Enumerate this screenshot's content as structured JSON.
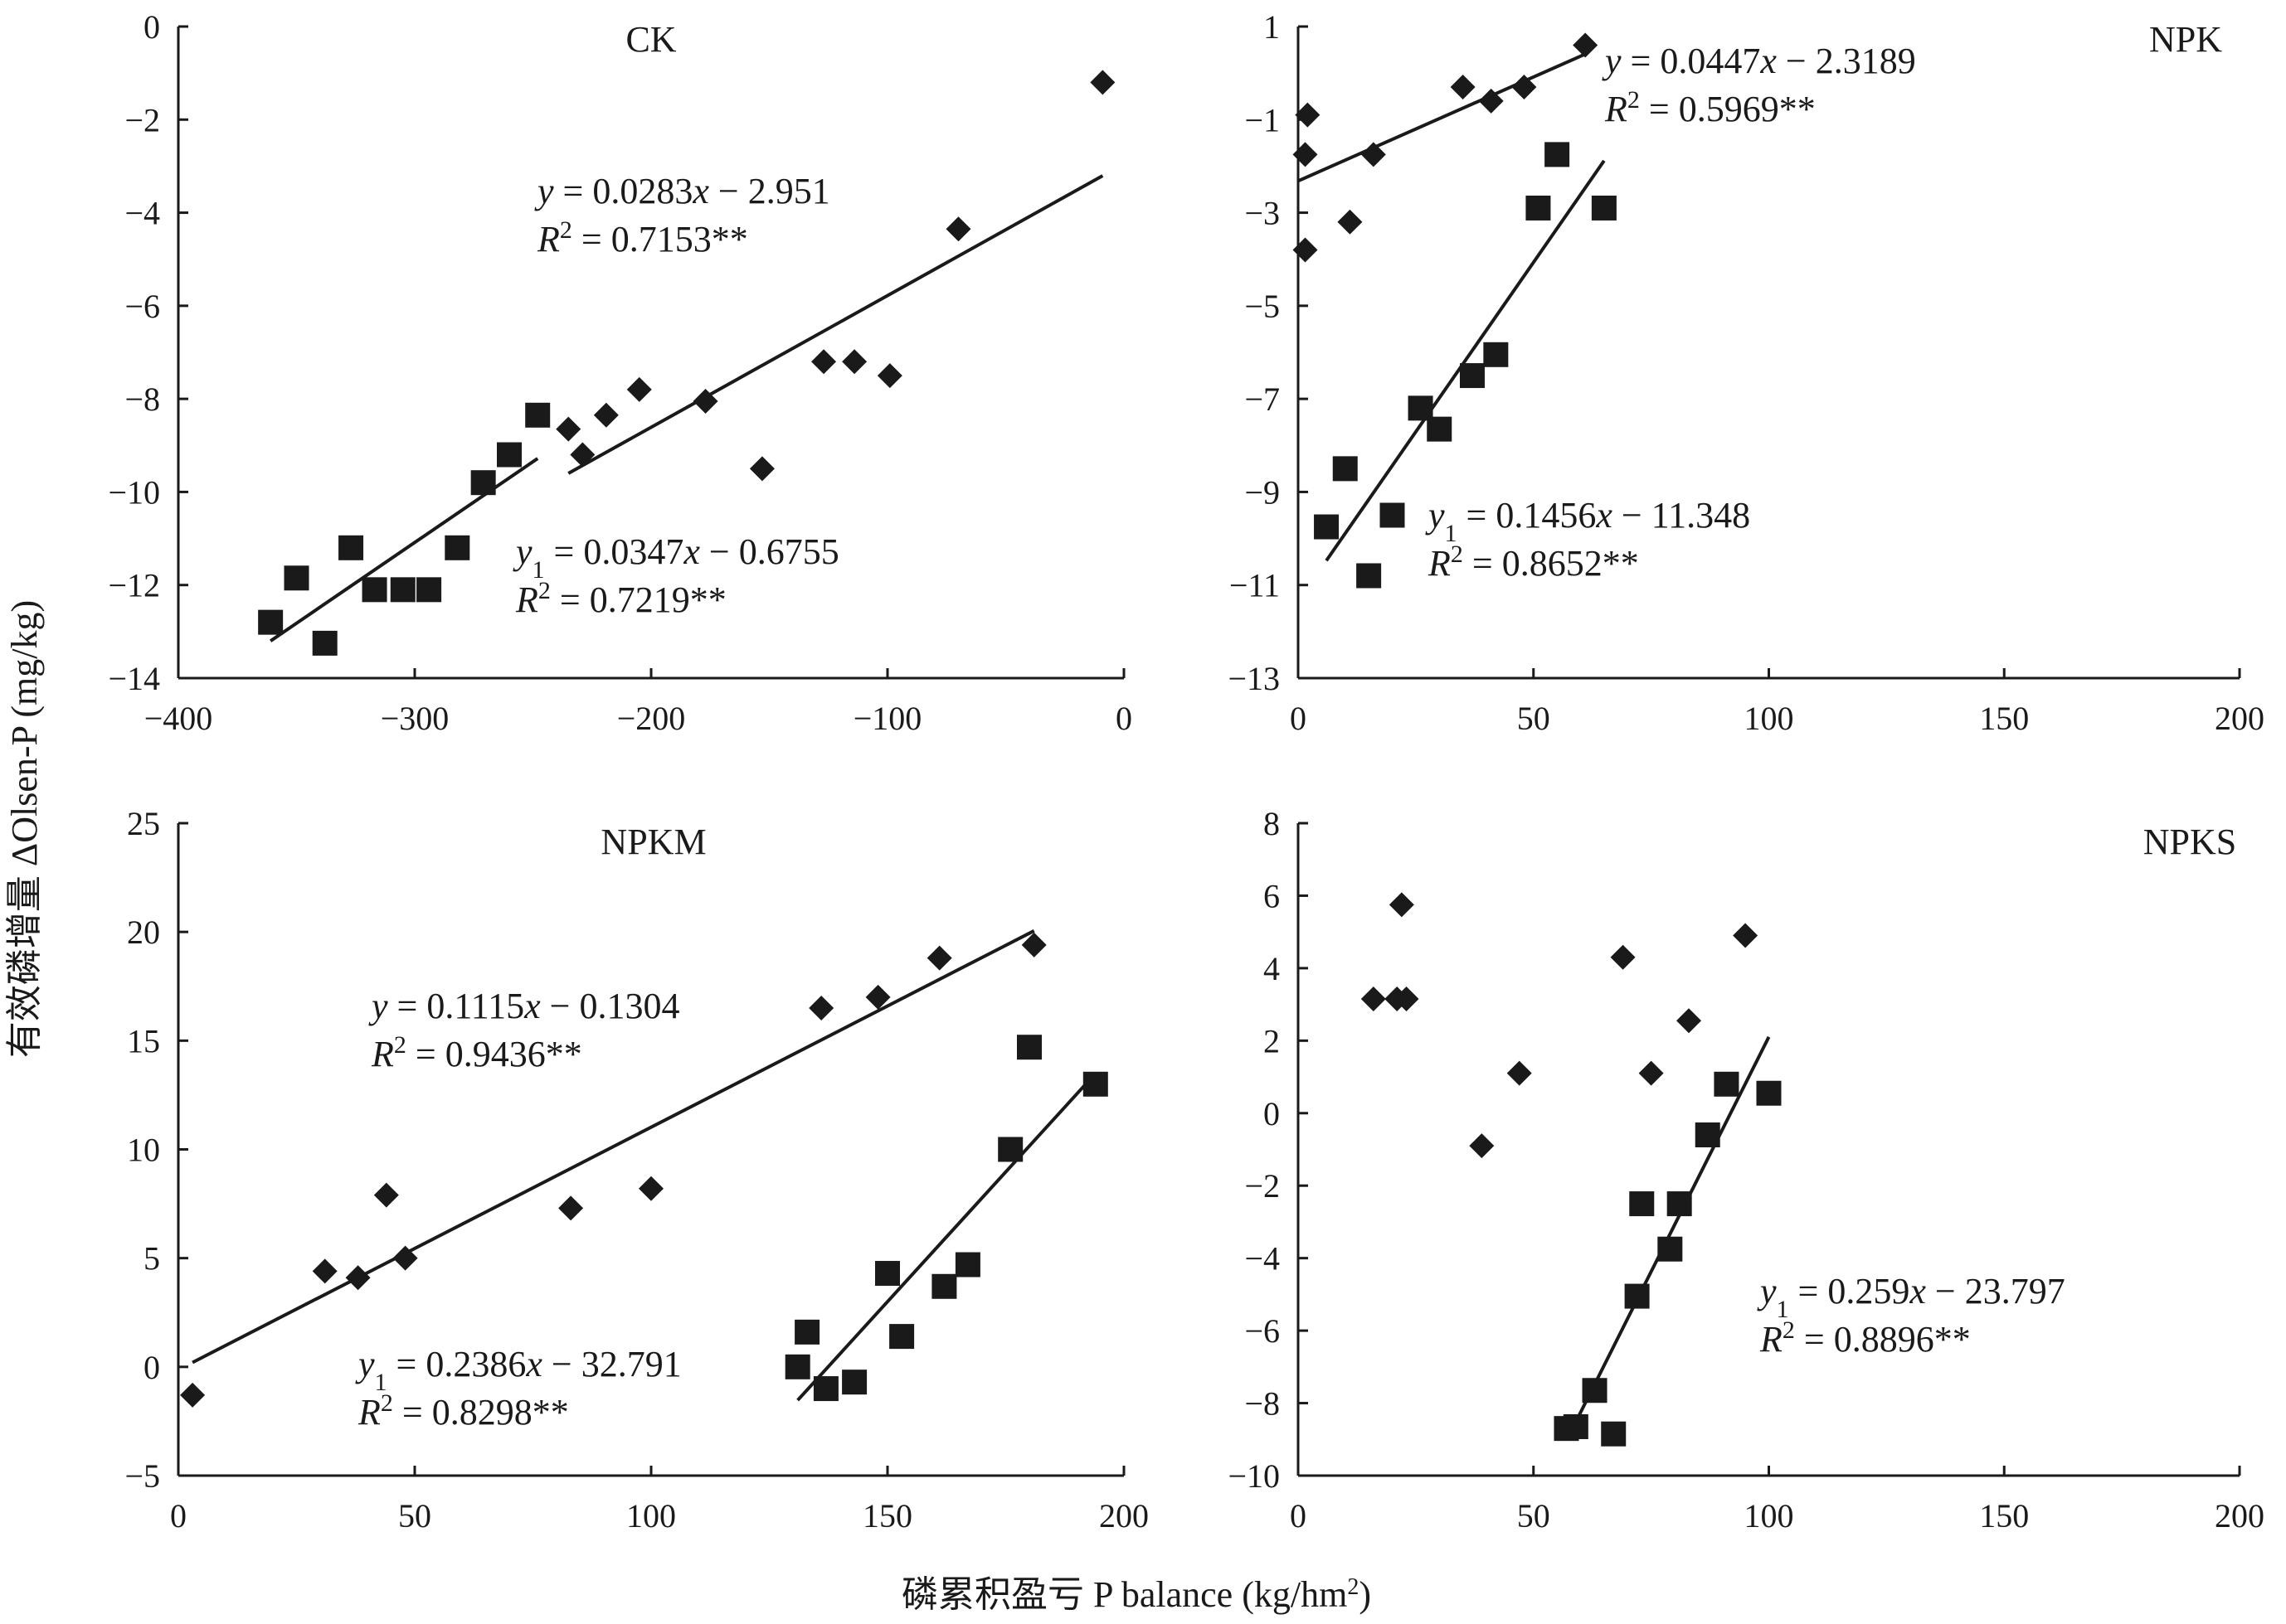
{
  "figure": {
    "ylabel": "有效磷增量 ΔOlsen-P (mg/kg)",
    "xlabel_main": "磷累积盈亏 P balance (kg/hm",
    "xlabel_sup": "2",
    "xlabel_close": ")"
  },
  "chart_data": [
    {
      "id": "ck",
      "type": "scatter",
      "title": "CK",
      "xlim": [
        -400,
        0
      ],
      "ylim": [
        -14,
        0
      ],
      "xticks": [
        -400,
        -300,
        -200,
        -100,
        0
      ],
      "yticks": [
        -14,
        -12,
        -10,
        -8,
        -6,
        -4,
        -2,
        0
      ],
      "xtick_labels": [
        "−400",
        "−300",
        "−200",
        "−100",
        "0"
      ],
      "ytick_labels": [
        "−14",
        "−12",
        "−10",
        "−8",
        "−6",
        "−4",
        "−2",
        "0"
      ],
      "series": [
        {
          "name": "diamond",
          "marker": "diamond",
          "points": [
            [
              -235,
              -8.65
            ],
            [
              -229,
              -9.2
            ],
            [
              -219,
              -8.35
            ],
            [
              -205,
              -7.8
            ],
            [
              -177,
              -8.05
            ],
            [
              -153,
              -9.5
            ],
            [
              -127,
              -7.2
            ],
            [
              -114,
              -7.2
            ],
            [
              -99,
              -7.5
            ],
            [
              -70,
              -4.35
            ],
            [
              -9,
              -1.2
            ]
          ],
          "fit": {
            "slope": 0.0283,
            "intercept": -2.951,
            "x_range": [
              -235,
              -9
            ]
          },
          "equation": {
            "y": "y",
            "sub": "",
            "rhs": " = 0.0283x − 2.951",
            "r2": " = 0.7153**"
          }
        },
        {
          "name": "square",
          "marker": "square",
          "points": [
            [
              -361,
              -12.8
            ],
            [
              -350,
              -11.85
            ],
            [
              -338,
              -13.25
            ],
            [
              -327,
              -11.2
            ],
            [
              -317,
              -12.1
            ],
            [
              -305,
              -12.1
            ],
            [
              -294,
              -12.1
            ],
            [
              -282,
              -11.2
            ],
            [
              -271,
              -9.8
            ],
            [
              -260,
              -9.2
            ],
            [
              -248,
              -8.35
            ]
          ],
          "fit": {
            "slope": 0.0347,
            "intercept": -0.6755,
            "x_range": [
              -361,
              -248
            ]
          },
          "equation": {
            "y": "y",
            "sub": "1",
            "rhs": " = 0.0347x − 0.6755",
            "r2": " = 0.7219**"
          }
        }
      ]
    },
    {
      "id": "npk",
      "type": "scatter",
      "title": "NPK",
      "xlim": [
        0,
        200
      ],
      "ylim": [
        -13,
        1
      ],
      "xticks": [
        0,
        50,
        100,
        150,
        200
      ],
      "yticks": [
        -13,
        -11,
        -9,
        -7,
        -5,
        -3,
        -1,
        1
      ],
      "xtick_labels": [
        "0",
        "50",
        "100",
        "150",
        "200"
      ],
      "ytick_labels": [
        "−13",
        "−11",
        "−9",
        "−7",
        "−5",
        "−3",
        "−1",
        "1"
      ],
      "series": [
        {
          "name": "diamond",
          "marker": "diamond",
          "points": [
            [
              2,
              -0.9
            ],
            [
              1.5,
              -1.75
            ],
            [
              1.5,
              -3.8
            ],
            [
              11,
              -3.2
            ],
            [
              16,
              -1.75
            ],
            [
              35,
              -0.3
            ],
            [
              41,
              -0.6
            ],
            [
              48,
              -0.3
            ],
            [
              61,
              0.6
            ]
          ],
          "fit": {
            "slope": 0.0447,
            "intercept": -2.3189,
            "x_range": [
              0,
              61
            ]
          },
          "equation": {
            "y": "y",
            "sub": "",
            "rhs": " = 0.0447x − 2.3189",
            "r2": " = 0.5969**"
          }
        },
        {
          "name": "square",
          "marker": "square",
          "points": [
            [
              6,
              -9.75
            ],
            [
              10,
              -8.5
            ],
            [
              15,
              -10.8
            ],
            [
              20,
              -9.5
            ],
            [
              26,
              -7.2
            ],
            [
              30,
              -7.65
            ],
            [
              37,
              -6.5
            ],
            [
              42,
              -6.05
            ],
            [
              51,
              -2.9
            ],
            [
              55,
              -1.75
            ],
            [
              65,
              -2.9
            ]
          ],
          "fit": {
            "slope": 0.1456,
            "intercept": -11.348,
            "x_range": [
              6,
              65
            ]
          },
          "equation": {
            "y": "y",
            "sub": "1",
            "rhs": " = 0.1456x − 11.348",
            "r2": " = 0.8652**"
          }
        }
      ]
    },
    {
      "id": "npkm",
      "type": "scatter",
      "title": "NPKM",
      "xlim": [
        0,
        200
      ],
      "ylim": [
        -5,
        25
      ],
      "xticks": [
        0,
        50,
        100,
        150,
        200
      ],
      "yticks": [
        -5,
        0,
        5,
        10,
        15,
        20,
        25
      ],
      "xtick_labels": [
        "0",
        "50",
        "100",
        "150",
        "200"
      ],
      "ytick_labels": [
        "−5",
        "0",
        "5",
        "10",
        "15",
        "20",
        "25"
      ],
      "series": [
        {
          "name": "diamond",
          "marker": "diamond",
          "points": [
            [
              3,
              -1.3
            ],
            [
              31,
              4.4
            ],
            [
              38,
              4.1
            ],
            [
              44,
              7.9
            ],
            [
              48,
              5.0
            ],
            [
              83,
              7.3
            ],
            [
              100,
              8.2
            ],
            [
              136,
              16.5
            ],
            [
              148,
              17.0
            ],
            [
              161,
              18.8
            ],
            [
              181,
              19.4
            ]
          ],
          "fit": {
            "slope": 0.1115,
            "intercept": -0.1304,
            "x_range": [
              3,
              181
            ]
          },
          "equation": {
            "y": "y",
            "sub": "",
            "rhs": " = 0.1115x − 0.1304",
            "r2": " = 0.9436**"
          }
        },
        {
          "name": "square",
          "marker": "square",
          "points": [
            [
              131,
              0.0
            ],
            [
              133,
              1.6
            ],
            [
              137,
              -1.0
            ],
            [
              143,
              -0.7
            ],
            [
              150,
              4.3
            ],
            [
              153,
              1.4
            ],
            [
              162,
              3.7
            ],
            [
              167,
              4.7
            ],
            [
              176,
              10.0
            ],
            [
              180,
              14.7
            ],
            [
              194,
              13.0
            ]
          ],
          "fit": {
            "slope": 0.2386,
            "intercept": -32.791,
            "x_range": [
              131,
              194
            ]
          },
          "equation": {
            "y": "y",
            "sub": "1",
            "rhs": " = 0.2386x − 32.791",
            "r2": " = 0.8298**"
          }
        }
      ]
    },
    {
      "id": "npks",
      "type": "scatter",
      "title": "NPKS",
      "xlim": [
        0,
        200
      ],
      "ylim": [
        -10,
        8
      ],
      "xticks": [
        0,
        50,
        100,
        150,
        200
      ],
      "yticks": [
        -10,
        -8,
        -6,
        -4,
        -2,
        0,
        2,
        4,
        6,
        8
      ],
      "xtick_labels": [
        "0",
        "50",
        "100",
        "150",
        "200"
      ],
      "ytick_labels": [
        "−10",
        "−8",
        "−6",
        "−4",
        "−2",
        "0",
        "2",
        "4",
        "6",
        "8"
      ],
      "series": [
        {
          "name": "diamond",
          "marker": "diamond",
          "points": [
            [
              16,
              3.15
            ],
            [
              21,
              3.15
            ],
            [
              22,
              5.75
            ],
            [
              23,
              3.15
            ],
            [
              39,
              -0.9
            ],
            [
              47,
              1.1
            ],
            [
              69,
              4.3
            ],
            [
              75,
              1.1
            ],
            [
              83,
              2.55
            ],
            [
              95,
              4.9
            ]
          ],
          "fit": null,
          "equation": null
        },
        {
          "name": "square",
          "marker": "square",
          "points": [
            [
              57,
              -8.7
            ],
            [
              59,
              -8.65
            ],
            [
              63,
              -7.65
            ],
            [
              67,
              -8.85
            ],
            [
              72,
              -5.05
            ],
            [
              73,
              -2.5
            ],
            [
              79,
              -3.75
            ],
            [
              81,
              -2.5
            ],
            [
              87,
              -0.6
            ],
            [
              91,
              0.8
            ],
            [
              100,
              0.55
            ]
          ],
          "fit": {
            "slope": 0.259,
            "intercept": -23.797,
            "x_range": [
              58,
              100
            ]
          },
          "equation": {
            "y": "y",
            "sub": "1",
            "rhs": " = 0.259x − 23.797",
            "r2": " = 0.8896**"
          }
        }
      ]
    }
  ]
}
